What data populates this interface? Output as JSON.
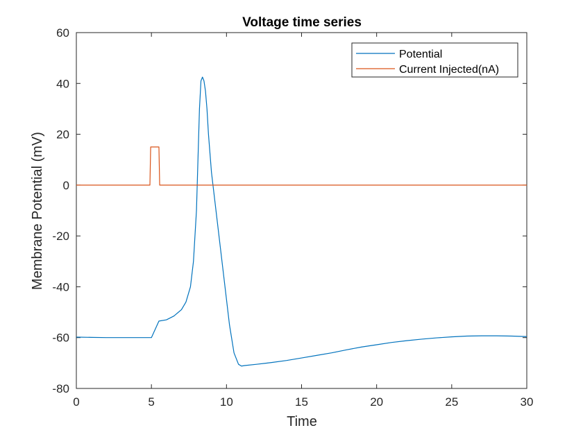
{
  "chart_data": {
    "type": "line",
    "title": "Voltage time series",
    "xlabel": "Time",
    "ylabel": "Membrane Potential (mV)",
    "xlim": [
      0,
      30
    ],
    "ylim": [
      -80,
      60
    ],
    "xticks": [
      0,
      5,
      10,
      15,
      20,
      25,
      30
    ],
    "yticks": [
      -80,
      -60,
      -40,
      -20,
      0,
      20,
      40,
      60
    ],
    "grid": false,
    "legend_position": "top-right",
    "series": [
      {
        "name": "Potential",
        "color": "#0072BD",
        "x": [
          0,
          1,
          2,
          3,
          4,
          5,
          5.5,
          6.0,
          6.5,
          7.0,
          7.3,
          7.6,
          7.8,
          8.0,
          8.1,
          8.2,
          8.3,
          8.4,
          8.5,
          8.6,
          8.7,
          8.8,
          9.0,
          9.3,
          9.6,
          9.9,
          10.2,
          10.5,
          10.8,
          11.0,
          11.2,
          12,
          13,
          14,
          15,
          16,
          17,
          18,
          19,
          20,
          21,
          22,
          23,
          24,
          25,
          26,
          27,
          28,
          29,
          30
        ],
        "y": [
          -59.8,
          -59.9,
          -60,
          -60,
          -60,
          -60,
          -53.5,
          -53,
          -51.5,
          -49,
          -46,
          -40,
          -30,
          -10,
          10,
          30,
          41,
          42.5,
          41,
          37,
          30,
          20,
          5,
          -10,
          -25,
          -40,
          -55,
          -66,
          -70.5,
          -71.2,
          -71,
          -70.5,
          -69.8,
          -69,
          -68,
          -67,
          -66,
          -64.8,
          -63.7,
          -62.8,
          -61.9,
          -61.2,
          -60.6,
          -60.1,
          -59.7,
          -59.4,
          -59.3,
          -59.3,
          -59.4,
          -59.6
        ]
      },
      {
        "name": "Current Injected(nA)",
        "color": "#D95319",
        "x": [
          0,
          4.9,
          4.95,
          5.5,
          5.55,
          30
        ],
        "y": [
          0,
          0,
          15,
          15,
          0,
          0
        ]
      }
    ]
  }
}
